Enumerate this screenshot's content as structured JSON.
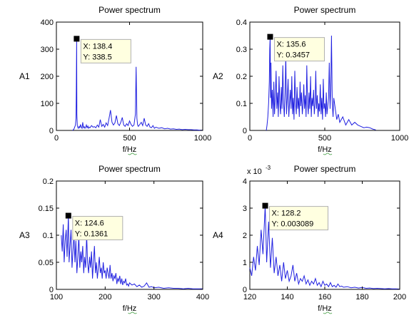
{
  "chart_data": [
    {
      "id": "A1",
      "type": "line",
      "title": "Power spectrum",
      "xlabel": "f/Hz",
      "ylabel": "A1",
      "xlim": [
        0,
        1000
      ],
      "ylim": [
        0,
        400
      ],
      "xticks": [
        0,
        500,
        1000
      ],
      "yticks": [
        0,
        100,
        200,
        300,
        400
      ],
      "series_color": "#2020e0",
      "series": [
        {
          "x": [
            110,
            115,
            120,
            125,
            130,
            134,
            136,
            138.4,
            140,
            143,
            146,
            150,
            155,
            160,
            165,
            170,
            175,
            180,
            185,
            190,
            195,
            200,
            205,
            210,
            215,
            220,
            225,
            230,
            240,
            250,
            260,
            270,
            280,
            290,
            300,
            310,
            320,
            330,
            340,
            350,
            360,
            370,
            380,
            390,
            400,
            410,
            420,
            430,
            440,
            450,
            460,
            470,
            480,
            490,
            500,
            510,
            520,
            530,
            540,
            545,
            550,
            555,
            560,
            570,
            580,
            590,
            600,
            610,
            620,
            630,
            640,
            650,
            660,
            670,
            680,
            690,
            700,
            720,
            740,
            760,
            780,
            800,
            820,
            840,
            860,
            880,
            900,
            920,
            940,
            960,
            980,
            1000
          ],
          "y": [
            0,
            2,
            5,
            12,
            20,
            45,
            150,
            338.5,
            60,
            18,
            12,
            8,
            15,
            10,
            22,
            12,
            8,
            30,
            10,
            14,
            8,
            12,
            20,
            10,
            16,
            8,
            12,
            10,
            18,
            12,
            14,
            10,
            20,
            12,
            40,
            15,
            22,
            12,
            28,
            18,
            45,
            75,
            30,
            20,
            28,
            55,
            25,
            18,
            30,
            48,
            20,
            15,
            25,
            18,
            35,
            22,
            15,
            20,
            60,
            235,
            45,
            20,
            15,
            22,
            30,
            18,
            45,
            20,
            15,
            25,
            12,
            10,
            18,
            8,
            12,
            10,
            8,
            10,
            6,
            8,
            5,
            6,
            4,
            5,
            3,
            4,
            3,
            3,
            2,
            2,
            1,
            1
          ]
        }
      ],
      "datatip": {
        "x_label": "X: 138.4",
        "y_label": "Y: 338.5",
        "x": 138.4,
        "y": 338.5
      }
    },
    {
      "id": "A2",
      "type": "line",
      "title": "Power spectrum",
      "xlabel": "f/Hz",
      "ylabel": "A2",
      "xlim": [
        0,
        1000
      ],
      "ylim": [
        0,
        0.4
      ],
      "xticks": [
        0,
        500,
        1000
      ],
      "yticks": [
        0,
        0.1,
        0.2,
        0.3,
        0.4
      ],
      "series_color": "#2020e0",
      "series": [
        {
          "x": [
            110,
            115,
            120,
            125,
            130,
            133,
            135.6,
            138,
            141,
            145,
            150,
            155,
            160,
            165,
            170,
            175,
            180,
            185,
            190,
            195,
            200,
            205,
            210,
            215,
            220,
            225,
            230,
            235,
            240,
            245,
            250,
            255,
            260,
            265,
            270,
            275,
            280,
            285,
            290,
            295,
            300,
            305,
            310,
            315,
            320,
            325,
            330,
            335,
            340,
            345,
            350,
            355,
            360,
            365,
            370,
            375,
            380,
            385,
            390,
            395,
            400,
            405,
            410,
            415,
            420,
            425,
            430,
            435,
            440,
            445,
            450,
            455,
            460,
            465,
            470,
            475,
            480,
            485,
            490,
            495,
            500,
            505,
            510,
            515,
            520,
            525,
            530,
            535,
            540,
            545,
            550,
            555,
            560,
            570,
            580,
            590,
            600,
            620,
            640,
            660,
            680,
            700,
            720,
            740,
            760,
            780,
            800,
            820,
            840
          ],
          "y": [
            0,
            0.02,
            0.05,
            0.1,
            0.18,
            0.3,
            0.3457,
            0.12,
            0.25,
            0.08,
            0.15,
            0.05,
            0.18,
            0.06,
            0.12,
            0.22,
            0.08,
            0.14,
            0.05,
            0.2,
            0.1,
            0.06,
            0.16,
            0.08,
            0.24,
            0.1,
            0.05,
            0.14,
            0.28,
            0.06,
            0.12,
            0.19,
            0.05,
            0.1,
            0.15,
            0.08,
            0.2,
            0.06,
            0.12,
            0.04,
            0.22,
            0.1,
            0.06,
            0.16,
            0.08,
            0.12,
            0.05,
            0.18,
            0.09,
            0.14,
            0.06,
            0.1,
            0.17,
            0.08,
            0.13,
            0.05,
            0.24,
            0.1,
            0.06,
            0.14,
            0.08,
            0.2,
            0.05,
            0.12,
            0.09,
            0.15,
            0.06,
            0.1,
            0.22,
            0.08,
            0.13,
            0.05,
            0.1,
            0.07,
            0.17,
            0.06,
            0.12,
            0.04,
            0.19,
            0.08,
            0.1,
            0.05,
            0.14,
            0.06,
            0.09,
            0.12,
            0.25,
            0.08,
            0.15,
            0.35,
            0.1,
            0.05,
            0.12,
            0.08,
            0.04,
            0.06,
            0.03,
            0.05,
            0.02,
            0.04,
            0.02,
            0.03,
            0.02,
            0.015,
            0.01,
            0.012,
            0.01,
            0.005,
            0.002
          ]
        }
      ],
      "datatip": {
        "x_label": "X: 135.6",
        "y_label": "Y: 0.3457",
        "x": 135.6,
        "y": 0.3457
      }
    },
    {
      "id": "A3",
      "type": "line",
      "title": "Power spectrum",
      "xlabel": "f/Hz",
      "ylabel": "A3",
      "xlim": [
        100,
        400
      ],
      "ylim": [
        0,
        0.2
      ],
      "xticks": [
        100,
        200,
        300,
        400
      ],
      "yticks": [
        0,
        0.05,
        0.1,
        0.15,
        0.2
      ],
      "series_color": "#2020e0",
      "series": [
        {
          "x": [
            110,
            112,
            114,
            116,
            118,
            120,
            122,
            124.6,
            126,
            128,
            130,
            132,
            134,
            136,
            138,
            140,
            142,
            144,
            146,
            148,
            150,
            152,
            154,
            156,
            158,
            160,
            162,
            164,
            166,
            168,
            170,
            172,
            174,
            176,
            178,
            180,
            182,
            184,
            186,
            188,
            190,
            192,
            194,
            196,
            198,
            200,
            202,
            204,
            206,
            208,
            210,
            212,
            214,
            216,
            218,
            220,
            222,
            224,
            226,
            228,
            230,
            232,
            234,
            236,
            238,
            240,
            242,
            244,
            246,
            248,
            250,
            255,
            260,
            265,
            270,
            275,
            280,
            285,
            290,
            295,
            300,
            310,
            320,
            330,
            340,
            350,
            360,
            370,
            380,
            390,
            400
          ],
          "y": [
            0.1,
            0.07,
            0.12,
            0.05,
            0.09,
            0.11,
            0.06,
            0.1361,
            0.05,
            0.08,
            0.11,
            0.04,
            0.07,
            0.1,
            0.05,
            0.09,
            0.03,
            0.06,
            0.1,
            0.04,
            0.07,
            0.05,
            0.08,
            0.03,
            0.06,
            0.04,
            0.1,
            0.05,
            0.03,
            0.06,
            0.04,
            0.07,
            0.02,
            0.05,
            0.08,
            0.03,
            0.05,
            0.02,
            0.04,
            0.06,
            0.03,
            0.04,
            0.02,
            0.05,
            0.03,
            0.035,
            0.02,
            0.04,
            0.03,
            0.02,
            0.045,
            0.02,
            0.03,
            0.015,
            0.025,
            0.02,
            0.03,
            0.01,
            0.02,
            0.015,
            0.025,
            0.01,
            0.02,
            0.008,
            0.015,
            0.012,
            0.02,
            0.008,
            0.01,
            0.006,
            0.012,
            0.008,
            0.01,
            0.005,
            0.008,
            0.004,
            0.006,
            0.012,
            0.004,
            0.005,
            0.003,
            0.004,
            0.002,
            0.003,
            0.002,
            0.002,
            0.001,
            0.002,
            0.001,
            0.001,
            0.001
          ]
        }
      ],
      "datatip": {
        "x_label": "X: 124.6",
        "y_label": "Y: 0.1361",
        "x": 124.6,
        "y": 0.1361
      }
    },
    {
      "id": "A4",
      "type": "line",
      "title": "Power spectrum",
      "xlabel": "f/Hz",
      "ylabel": "A4",
      "exponent_label": "x 10",
      "exponent_power": "-3",
      "xlim": [
        120,
        200
      ],
      "ylim": [
        0,
        4
      ],
      "xticks": [
        120,
        140,
        160,
        180,
        200
      ],
      "yticks": [
        0,
        1,
        2,
        3,
        4
      ],
      "series_color": "#2020e0",
      "series": [
        {
          "x": [
            120,
            121,
            122,
            123,
            124,
            125,
            126,
            127,
            128.2,
            129,
            130,
            131,
            132,
            133,
            134,
            135,
            136,
            137,
            138,
            139,
            140,
            141,
            142,
            143,
            144,
            145,
            146,
            147,
            148,
            149,
            150,
            151,
            152,
            153,
            154,
            155,
            156,
            157,
            158,
            159,
            160,
            161,
            162,
            163,
            164,
            165,
            166,
            167,
            168,
            169,
            170,
            172,
            174,
            176,
            178,
            180,
            182,
            184,
            186,
            188,
            190,
            192,
            194,
            196,
            198,
            200
          ],
          "y": [
            0.8,
            0.5,
            1.2,
            0.7,
            1.6,
            0.9,
            2.2,
            1.3,
            3.089,
            1.0,
            2.5,
            0.8,
            1.9,
            0.6,
            1.2,
            0.5,
            0.9,
            0.3,
            1.0,
            0.4,
            0.7,
            0.3,
            0.5,
            0.9,
            0.3,
            0.6,
            0.2,
            0.4,
            0.3,
            0.5,
            0.2,
            0.35,
            0.15,
            0.3,
            0.2,
            0.4,
            0.15,
            0.25,
            0.1,
            0.3,
            0.15,
            0.2,
            0.1,
            0.25,
            0.1,
            0.15,
            0.08,
            0.2,
            0.1,
            0.12,
            0.08,
            0.1,
            0.06,
            0.08,
            0.05,
            0.07,
            0.04,
            0.05,
            0.03,
            0.04,
            0.03,
            0.02,
            0.03,
            0.02,
            0.02,
            0.01
          ]
        }
      ],
      "datatip": {
        "x_label": "X: 128.2",
        "y_label": "Y: 0.003089",
        "x": 128.2,
        "y": 3.089
      }
    }
  ]
}
